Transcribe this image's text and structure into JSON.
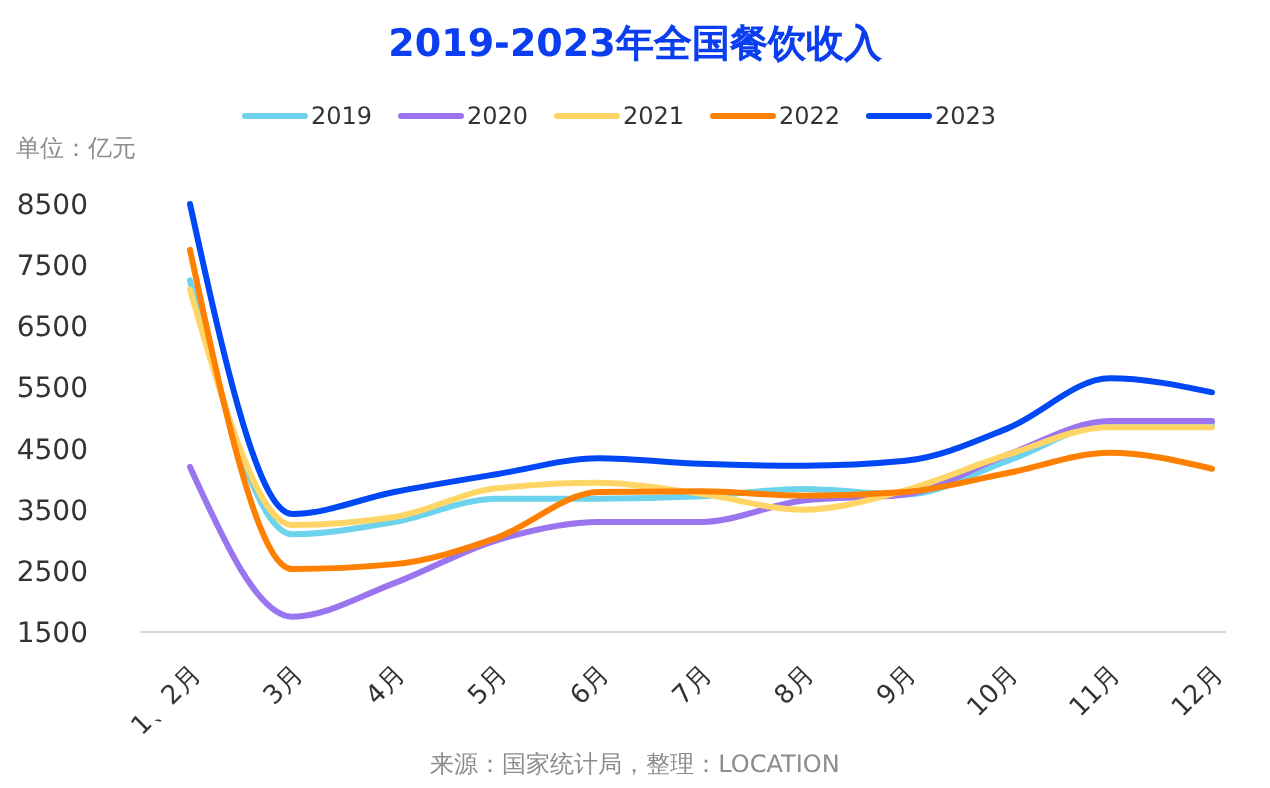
{
  "chart_data": {
    "type": "line",
    "title": "2019-2023年全国餐饮收入",
    "ylabel": "单位：亿元",
    "annotations": [
      "来源：国家统计局，整理：LOCATION"
    ],
    "categories": [
      "1、2月",
      "3月",
      "4月",
      "5月",
      "6月",
      "7月",
      "8月",
      "9月",
      "10月",
      "11月",
      "12月"
    ],
    "series": [
      {
        "name": "2019",
        "color": "#6dd3ec",
        "values": [
          7250,
          3100,
          3300,
          3680,
          3680,
          3720,
          3840,
          3750,
          4300,
          4900,
          4900
        ]
      },
      {
        "name": "2020",
        "color": "#9b74ef",
        "values": [
          4200,
          1750,
          2300,
          3000,
          3300,
          3300,
          3650,
          3750,
          4400,
          4950,
          4950
        ]
      },
      {
        "name": "2021",
        "color": "#ffd666",
        "values": [
          7100,
          3250,
          3380,
          3850,
          3940,
          3760,
          3500,
          3820,
          4400,
          4850,
          4850
        ]
      },
      {
        "name": "2022",
        "color": "#ff8000",
        "values": [
          7750,
          2530,
          2610,
          3040,
          3790,
          3800,
          3730,
          3790,
          4100,
          4430,
          4170
        ]
      },
      {
        "name": "2023",
        "color": "#0047f5",
        "values": [
          8500,
          3430,
          3790,
          4080,
          4340,
          4250,
          4220,
          4300,
          4830,
          5650,
          5420
        ]
      }
    ],
    "ylim": [
      1500,
      8500
    ],
    "yticks": [
      1500,
      2500,
      3500,
      4500,
      5500,
      6500,
      7500,
      8500
    ],
    "grid": false,
    "legend": "top",
    "marker": "none",
    "line_style": "solid"
  }
}
